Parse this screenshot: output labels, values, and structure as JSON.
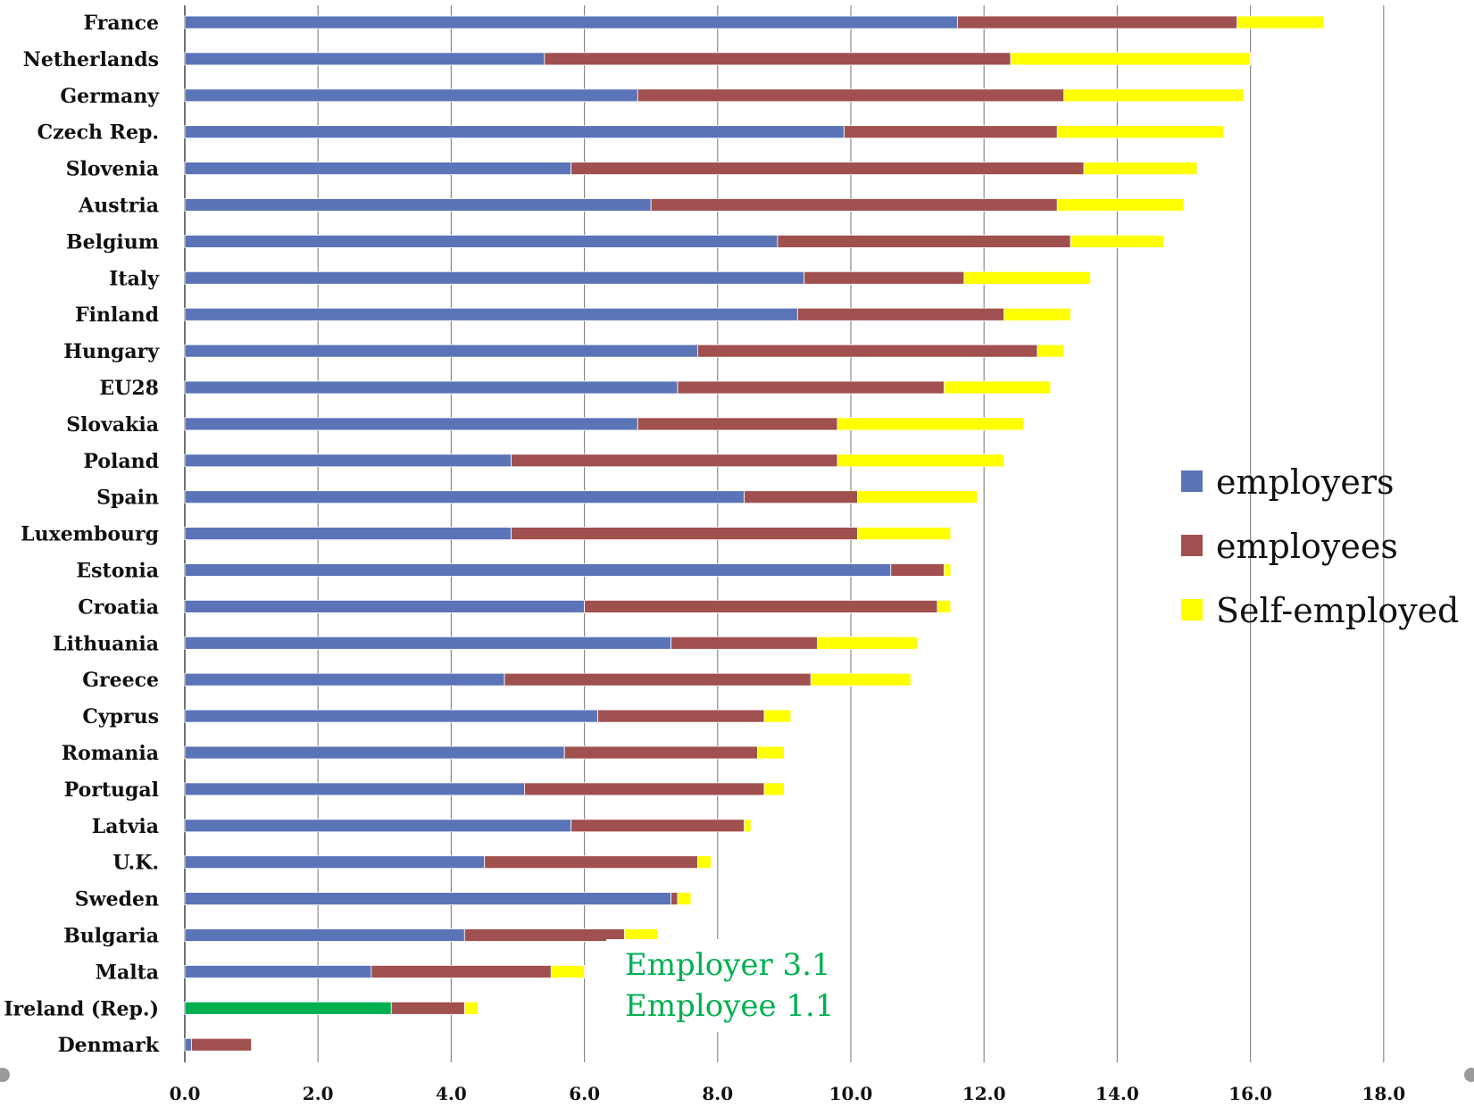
{
  "chart_data": {
    "type": "bar",
    "orientation": "horizontal",
    "stacked": true,
    "categories": [
      "France",
      "Netherlands",
      "Germany",
      "Czech Rep.",
      "Slovenia",
      "Austria",
      "Belgium",
      "Italy",
      "Finland",
      "Hungary",
      "EU28",
      "Slovakia",
      "Poland",
      "Spain",
      "Luxembourg",
      "Estonia",
      "Croatia",
      "Lithuania",
      "Greece",
      "Cyprus",
      "Romania",
      "Portugal",
      "Latvia",
      "U.K.",
      "Sweden",
      "Bulgaria",
      "Malta",
      "Ireland (Rep.)",
      "Denmark"
    ],
    "series": [
      {
        "name": "employers",
        "color": "#5b74b8",
        "values": [
          11.6,
          5.4,
          6.8,
          9.9,
          5.8,
          7.0,
          8.9,
          9.3,
          9.2,
          7.7,
          7.4,
          6.8,
          4.9,
          8.4,
          4.9,
          10.6,
          6.0,
          7.3,
          4.8,
          6.2,
          5.7,
          5.1,
          5.8,
          4.5,
          7.3,
          4.2,
          2.8,
          3.1,
          0.1
        ]
      },
      {
        "name": "employees",
        "color": "#a0504f",
        "values": [
          4.2,
          7.0,
          6.4,
          3.2,
          7.7,
          6.1,
          4.4,
          2.4,
          3.1,
          5.1,
          4.0,
          3.0,
          4.9,
          1.7,
          5.2,
          0.8,
          5.3,
          2.2,
          4.6,
          2.5,
          2.9,
          3.6,
          2.6,
          3.2,
          0.1,
          2.4,
          2.7,
          1.1,
          0.9
        ]
      },
      {
        "name": "Self-employed",
        "color": "#ffff00",
        "values": [
          1.3,
          3.6,
          2.7,
          2.5,
          1.7,
          1.9,
          1.4,
          1.9,
          1.0,
          0.4,
          1.6,
          2.8,
          2.5,
          1.8,
          1.4,
          0.1,
          0.2,
          1.5,
          1.5,
          0.4,
          0.4,
          0.3,
          0.1,
          0.2,
          0.2,
          0.5,
          0.5,
          0.2,
          0.0
        ]
      }
    ],
    "highlight": {
      "category": "Ireland (Rep.)",
      "series": "employers",
      "color": "#00b050"
    },
    "x_ticks": [
      "0.0",
      "2.0",
      "4.0",
      "6.0",
      "8.0",
      "10.0",
      "12.0",
      "14.0",
      "16.0",
      "18.0"
    ],
    "xlim": [
      0,
      18
    ],
    "grid": true,
    "legend_position": "right",
    "annotation": {
      "lines": [
        "Employer 3.1",
        "Employee  1.1"
      ],
      "color": "#00b050"
    }
  }
}
